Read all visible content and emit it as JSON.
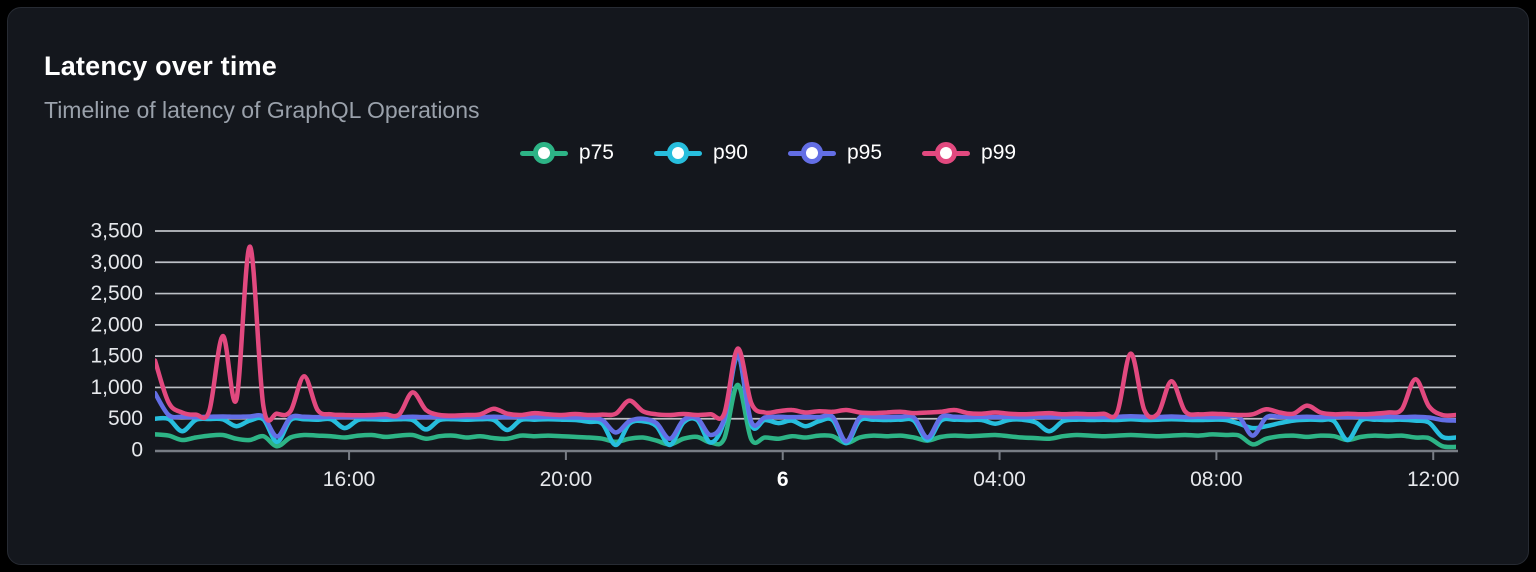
{
  "panel": {
    "title": "Latency over time",
    "subtitle": "Timeline of latency of GraphQL Operations"
  },
  "colors": {
    "page_bg": "#000000",
    "card_bg": "#14171d",
    "card_border": "#272b33",
    "title_text": "#ffffff",
    "subtitle_text": "#9aa1ab",
    "gridline": "#d0d3d9",
    "axis_line": "#787d85",
    "tick_label": "#e6e8ec",
    "p75": "#2db486",
    "p90": "#27bedd",
    "p95": "#636ee5",
    "p99": "#e2497f"
  },
  "chart_data": {
    "type": "line",
    "title": "Latency over time",
    "subtitle": "Timeline of latency of GraphQL Operations",
    "grid": "horizontal",
    "legend_position": "top-center",
    "x_axis": {
      "domain_hours": [
        12.42,
        36.42
      ],
      "points_start_hour": 12.42,
      "points_step_hours": 0.25,
      "ticks": [
        {
          "hour": 16,
          "label": "16:00",
          "bold": false
        },
        {
          "hour": 20,
          "label": "20:00",
          "bold": false
        },
        {
          "hour": 24,
          "label": "6",
          "bold": true
        },
        {
          "hour": 28,
          "label": "04:00",
          "bold": false
        },
        {
          "hour": 32,
          "label": "08:00",
          "bold": false
        },
        {
          "hour": 36,
          "label": "12:00",
          "bold": false
        }
      ]
    },
    "y_axis": {
      "min": 0,
      "max": 3500,
      "step": 500,
      "labels": [
        "0",
        "500",
        "1,000",
        "1,500",
        "2,000",
        "2,500",
        "3,000",
        "3,500"
      ]
    },
    "series": [
      {
        "name": "p75",
        "color": "#2db486",
        "values": [
          250,
          230,
          160,
          200,
          230,
          240,
          180,
          160,
          220,
          60,
          200,
          240,
          230,
          220,
          200,
          230,
          240,
          210,
          230,
          240,
          180,
          220,
          230,
          200,
          220,
          190,
          180,
          230,
          220,
          230,
          220,
          210,
          200,
          180,
          130,
          180,
          200,
          150,
          90,
          180,
          210,
          120,
          180,
          1040,
          170,
          200,
          180,
          220,
          200,
          230,
          220,
          110,
          200,
          230,
          220,
          230,
          200,
          150,
          210,
          230,
          220,
          230,
          240,
          220,
          200,
          190,
          180,
          220,
          240,
          230,
          220,
          230,
          240,
          230,
          220,
          230,
          240,
          230,
          250,
          240,
          230,
          90,
          180,
          220,
          230,
          210,
          230,
          220,
          160,
          210,
          230,
          220,
          230,
          200,
          190,
          60,
          50
        ]
      },
      {
        "name": "p90",
        "color": "#27bedd",
        "values": [
          500,
          495,
          300,
          480,
          495,
          490,
          380,
          470,
          490,
          130,
          480,
          490,
          485,
          490,
          350,
          480,
          490,
          485,
          490,
          480,
          330,
          480,
          490,
          485,
          490,
          480,
          320,
          480,
          485,
          490,
          485,
          480,
          450,
          420,
          80,
          420,
          460,
          380,
          80,
          440,
          480,
          120,
          460,
          1500,
          400,
          480,
          430,
          470,
          380,
          460,
          480,
          110,
          470,
          485,
          480,
          485,
          470,
          160,
          470,
          485,
          480,
          480,
          420,
          480,
          485,
          440,
          300,
          460,
          485,
          480,
          485,
          480,
          490,
          480,
          485,
          490,
          485,
          480,
          485,
          480,
          420,
          350,
          380,
          430,
          470,
          485,
          480,
          460,
          160,
          470,
          485,
          480,
          485,
          470,
          440,
          210,
          200
        ]
      },
      {
        "name": "p95",
        "color": "#636ee5",
        "values": [
          910,
          560,
          530,
          525,
          530,
          535,
          530,
          535,
          530,
          215,
          520,
          530,
          525,
          530,
          525,
          530,
          525,
          530,
          525,
          530,
          525,
          530,
          525,
          530,
          525,
          530,
          525,
          530,
          525,
          530,
          525,
          520,
          515,
          480,
          280,
          460,
          500,
          430,
          180,
          480,
          510,
          240,
          500,
          1530,
          450,
          520,
          530,
          525,
          530,
          525,
          530,
          140,
          520,
          530,
          525,
          530,
          520,
          200,
          525,
          530,
          525,
          530,
          525,
          530,
          525,
          530,
          525,
          530,
          525,
          530,
          525,
          530,
          540,
          530,
          525,
          535,
          525,
          530,
          525,
          530,
          525,
          230,
          520,
          530,
          525,
          530,
          525,
          530,
          525,
          530,
          525,
          530,
          525,
          530,
          520,
          480,
          470
        ]
      },
      {
        "name": "p99",
        "color": "#e2497f",
        "values": [
          1430,
          760,
          600,
          565,
          620,
          1820,
          800,
          3250,
          700,
          580,
          620,
          1180,
          640,
          570,
          560,
          555,
          560,
          570,
          565,
          920,
          640,
          560,
          550,
          560,
          570,
          660,
          580,
          560,
          590,
          570,
          560,
          575,
          560,
          565,
          580,
          790,
          620,
          570,
          560,
          575,
          560,
          570,
          580,
          1620,
          750,
          600,
          620,
          640,
          600,
          620,
          610,
          640,
          600,
          590,
          600,
          610,
          590,
          600,
          610,
          640,
          590,
          580,
          600,
          580,
          570,
          580,
          590,
          570,
          580,
          570,
          580,
          600,
          1540,
          640,
          580,
          1100,
          620,
          570,
          580,
          570,
          560,
          570,
          650,
          600,
          580,
          710,
          600,
          570,
          580,
          570,
          580,
          600,
          650,
          1130,
          700,
          560,
          560
        ]
      }
    ]
  }
}
